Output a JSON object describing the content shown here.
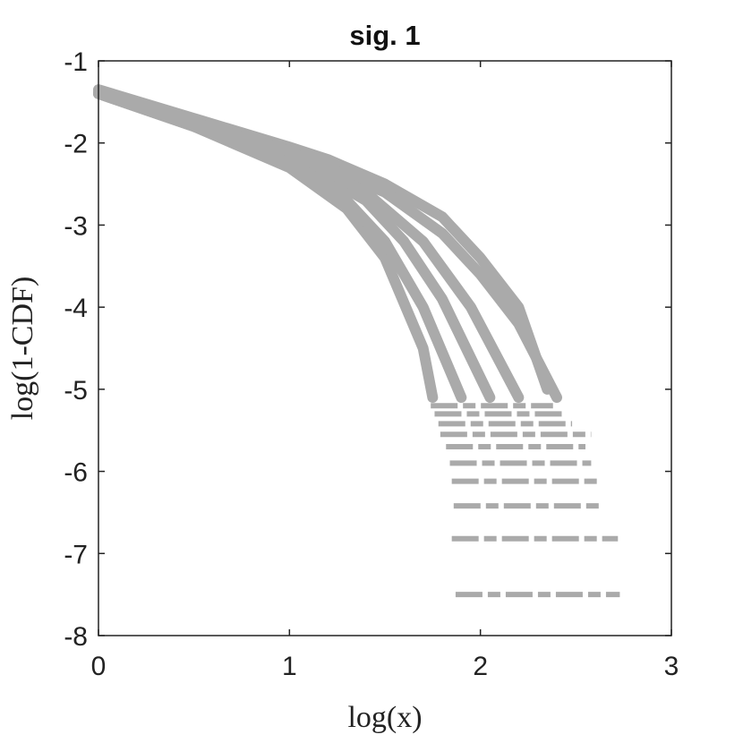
{
  "chart_data": {
    "type": "line",
    "title": "sig. 1",
    "x_label": "log(x)",
    "y_label": "log(1-CDF)",
    "color": "#aaaaaa",
    "xlim": [
      0,
      3
    ],
    "xticks": [
      0,
      1,
      2,
      3
    ],
    "ylim": [
      -8,
      -1
    ],
    "yticks": [
      -1,
      -2,
      -3,
      -4,
      -5,
      -6,
      -7,
      -8
    ],
    "series": [
      {
        "x": [
          0,
          0.5,
          1,
          1.2,
          1.5,
          1.8,
          2.0,
          2.2,
          2.35
        ],
        "values": [
          -1.35,
          -1.7,
          -2.05,
          -2.2,
          -2.5,
          -2.9,
          -3.4,
          -4.0,
          -5.0
        ],
        "style": "solid"
      },
      {
        "x": [
          0,
          0.5,
          1,
          1.5,
          1.8,
          2.0,
          2.2,
          2.4
        ],
        "values": [
          -1.4,
          -1.75,
          -2.1,
          -2.6,
          -3.1,
          -3.6,
          -4.2,
          -5.1
        ],
        "style": "solid"
      },
      {
        "x": [
          0,
          0.5,
          1,
          1.3,
          1.5,
          1.7,
          1.75
        ],
        "values": [
          -1.4,
          -1.8,
          -2.3,
          -2.8,
          -3.4,
          -4.5,
          -5.1
        ],
        "style": "solid"
      },
      {
        "x": [
          0,
          0.5,
          1,
          1.3,
          1.5,
          1.7,
          1.9
        ],
        "values": [
          -1.4,
          -1.8,
          -2.2,
          -2.7,
          -3.2,
          -4.0,
          -5.1
        ],
        "style": "solid"
      },
      {
        "x": [
          0,
          0.5,
          1,
          1.4,
          1.6,
          1.8,
          2.05
        ],
        "values": [
          -1.4,
          -1.77,
          -2.15,
          -2.7,
          -3.2,
          -3.9,
          -5.1
        ],
        "style": "solid"
      },
      {
        "x": [
          0,
          0.5,
          1,
          1.4,
          1.7,
          1.95,
          2.2
        ],
        "values": [
          -1.38,
          -1.75,
          -2.1,
          -2.6,
          -3.2,
          -4.0,
          -5.1
        ],
        "style": "solid"
      },
      {
        "x": [
          1.74,
          2.38
        ],
        "values": [
          -5.2,
          -5.2
        ],
        "style": "dashed"
      },
      {
        "x": [
          1.76,
          2.45
        ],
        "values": [
          -5.3,
          -5.3
        ],
        "style": "dashed"
      },
      {
        "x": [
          1.78,
          2.48
        ],
        "values": [
          -5.42,
          -5.42
        ],
        "style": "dashed"
      },
      {
        "x": [
          1.79,
          2.58
        ],
        "values": [
          -5.55,
          -5.55
        ],
        "style": "dashed"
      },
      {
        "x": [
          1.82,
          2.55
        ],
        "values": [
          -5.7,
          -5.7
        ],
        "style": "dashed"
      },
      {
        "x": [
          1.84,
          2.58
        ],
        "values": [
          -5.9,
          -5.9
        ],
        "style": "dashed"
      },
      {
        "x": [
          1.85,
          2.63
        ],
        "values": [
          -6.12,
          -6.12
        ],
        "style": "dashed"
      },
      {
        "x": [
          1.86,
          2.62
        ],
        "values": [
          -6.42,
          -6.42
        ],
        "style": "dashed"
      },
      {
        "x": [
          1.85,
          2.72
        ],
        "values": [
          -6.82,
          -6.82
        ],
        "style": "dashed"
      },
      {
        "x": [
          1.87,
          2.73
        ],
        "values": [
          -7.5,
          -7.5
        ],
        "style": "dashed"
      }
    ]
  }
}
